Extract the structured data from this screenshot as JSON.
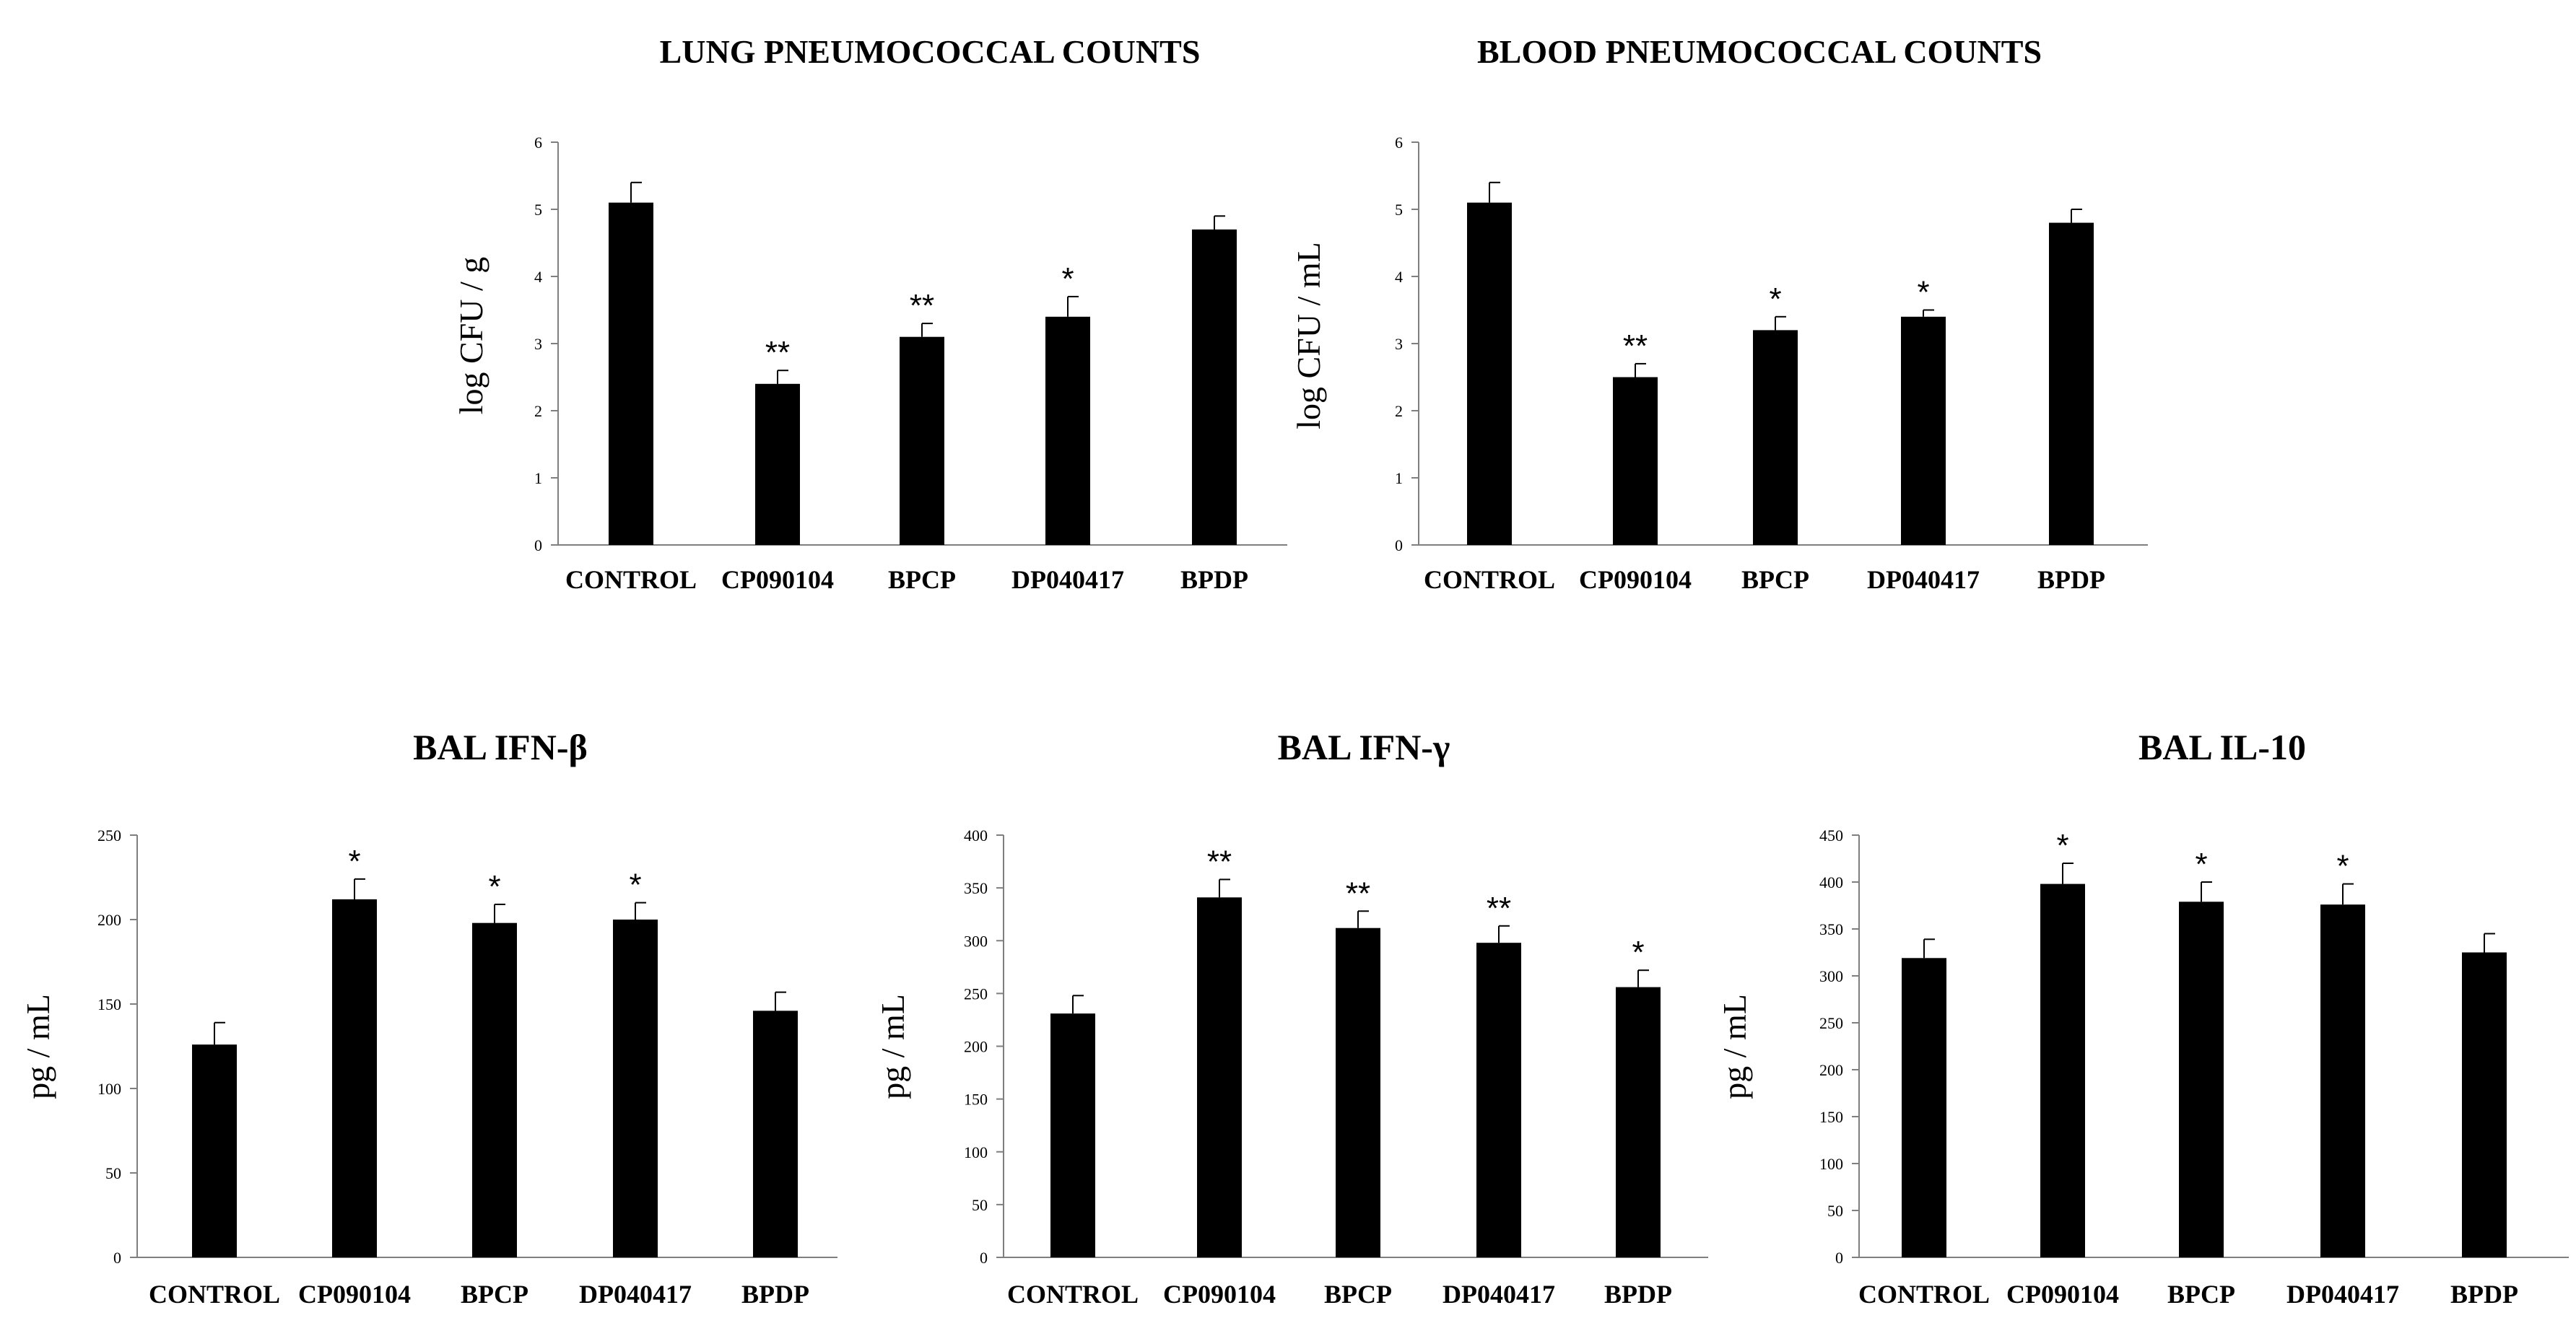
{
  "chart_data": [
    {
      "type": "bar",
      "title": "LUNG PNEUMOCOCCAL COUNTS",
      "ylabel": "log CFU / g",
      "xlabel": "",
      "ylim": [
        0,
        6
      ],
      "yticks": [
        "0",
        "1",
        "2",
        "3",
        "4",
        "5",
        "6"
      ],
      "categories": [
        "CONTROL",
        "CP090104",
        "BPCP",
        "DP040417",
        "BPDP"
      ],
      "values": [
        5.1,
        2.4,
        3.1,
        3.4,
        4.7
      ],
      "errors": [
        0.3,
        0.2,
        0.2,
        0.3,
        0.2
      ],
      "significance": [
        "",
        "**",
        "**",
        "*",
        ""
      ]
    },
    {
      "type": "bar",
      "title": "BLOOD PNEUMOCOCCAL COUNTS",
      "ylabel": "log CFU / mL",
      "xlabel": "",
      "ylim": [
        0,
        6
      ],
      "yticks": [
        "0",
        "1",
        "2",
        "3",
        "4",
        "5",
        "6"
      ],
      "categories": [
        "CONTROL",
        "CP090104",
        "BPCP",
        "DP040417",
        "BPDP"
      ],
      "values": [
        5.1,
        2.5,
        3.2,
        3.4,
        4.8
      ],
      "errors": [
        0.3,
        0.2,
        0.2,
        0.1,
        0.2
      ],
      "significance": [
        "",
        "**",
        "*",
        "*",
        ""
      ]
    },
    {
      "type": "bar",
      "title": "BAL IFN-β",
      "ylabel": "pg / mL",
      "xlabel": "",
      "ylim": [
        0,
        250
      ],
      "yticks": [
        "0",
        "50",
        "100",
        "150",
        "200",
        "250"
      ],
      "categories": [
        "CONTROL",
        "CP090104",
        "BPCP",
        "DP040417",
        "BPDP"
      ],
      "values": [
        126,
        212,
        198,
        200,
        146
      ],
      "errors": [
        13,
        12,
        11,
        10,
        11
      ],
      "significance": [
        "",
        "*",
        "*",
        "*",
        ""
      ]
    },
    {
      "type": "bar",
      "title": "BAL IFN-γ",
      "ylabel": "pg / mL",
      "xlabel": "",
      "ylim": [
        0,
        400
      ],
      "yticks": [
        "0",
        "50",
        "100",
        "150",
        "200",
        "250",
        "300",
        "350",
        "400"
      ],
      "categories": [
        "CONTROL",
        "CP090104",
        "BPCP",
        "DP040417",
        "BPDP"
      ],
      "values": [
        231,
        341,
        312,
        298,
        256
      ],
      "errors": [
        17,
        17,
        16,
        16,
        16
      ],
      "significance": [
        "",
        "**",
        "**",
        "**",
        "*"
      ]
    },
    {
      "type": "bar",
      "title": "BAL IL-10",
      "ylabel": "pg / mL",
      "xlabel": "",
      "ylim": [
        0,
        450
      ],
      "yticks": [
        "0",
        "50",
        "100",
        "150",
        "200",
        "250",
        "300",
        "350",
        "400",
        "450"
      ],
      "categories": [
        "CONTROL",
        "CP090104",
        "BPCP",
        "DP040417",
        "BPDP"
      ],
      "values": [
        319,
        398,
        379,
        376,
        325
      ],
      "errors": [
        20,
        22,
        21,
        22,
        20
      ],
      "significance": [
        "",
        "*",
        "*",
        "*",
        ""
      ]
    }
  ]
}
